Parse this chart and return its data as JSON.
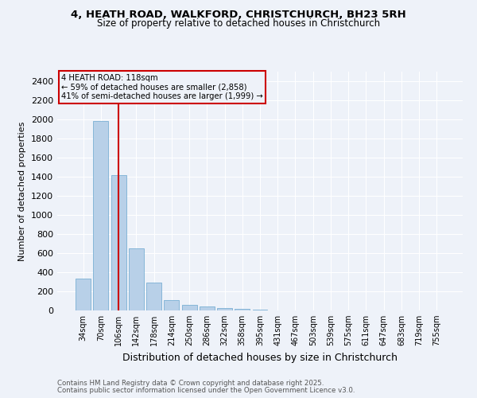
{
  "title1": "4, HEATH ROAD, WALKFORD, CHRISTCHURCH, BH23 5RH",
  "title2": "Size of property relative to detached houses in Christchurch",
  "xlabel": "Distribution of detached houses by size in Christchurch",
  "ylabel": "Number of detached properties",
  "categories": [
    "34sqm",
    "70sqm",
    "106sqm",
    "142sqm",
    "178sqm",
    "214sqm",
    "250sqm",
    "286sqm",
    "322sqm",
    "358sqm",
    "395sqm",
    "431sqm",
    "467sqm",
    "503sqm",
    "539sqm",
    "575sqm",
    "611sqm",
    "647sqm",
    "683sqm",
    "719sqm",
    "755sqm"
  ],
  "values": [
    330,
    1980,
    1420,
    650,
    290,
    110,
    55,
    40,
    28,
    18,
    12,
    0,
    0,
    0,
    0,
    0,
    0,
    0,
    0,
    0,
    0
  ],
  "bar_color": "#b8d0e8",
  "bar_edge_color": "#7aafd4",
  "vline_x_index": 2,
  "vline_color": "#cc0000",
  "annotation_title": "4 HEATH ROAD: 118sqm",
  "annotation_line1": "← 59% of detached houses are smaller (2,858)",
  "annotation_line2": "41% of semi-detached houses are larger (1,999) →",
  "annotation_box_color": "#cc0000",
  "ylim": [
    0,
    2500
  ],
  "yticks": [
    0,
    200,
    400,
    600,
    800,
    1000,
    1200,
    1400,
    1600,
    1800,
    2000,
    2200,
    2400
  ],
  "footnote1": "Contains HM Land Registry data © Crown copyright and database right 2025.",
  "footnote2": "Contains public sector information licensed under the Open Government Licence v3.0.",
  "bg_color": "#eef2f9",
  "grid_color": "#ffffff",
  "title1_fontsize": 9.5,
  "title2_fontsize": 8.5,
  "xlabel_fontsize": 9,
  "ylabel_fontsize": 8,
  "xtick_fontsize": 7,
  "ytick_fontsize": 8,
  "footnote_fontsize": 6.2
}
